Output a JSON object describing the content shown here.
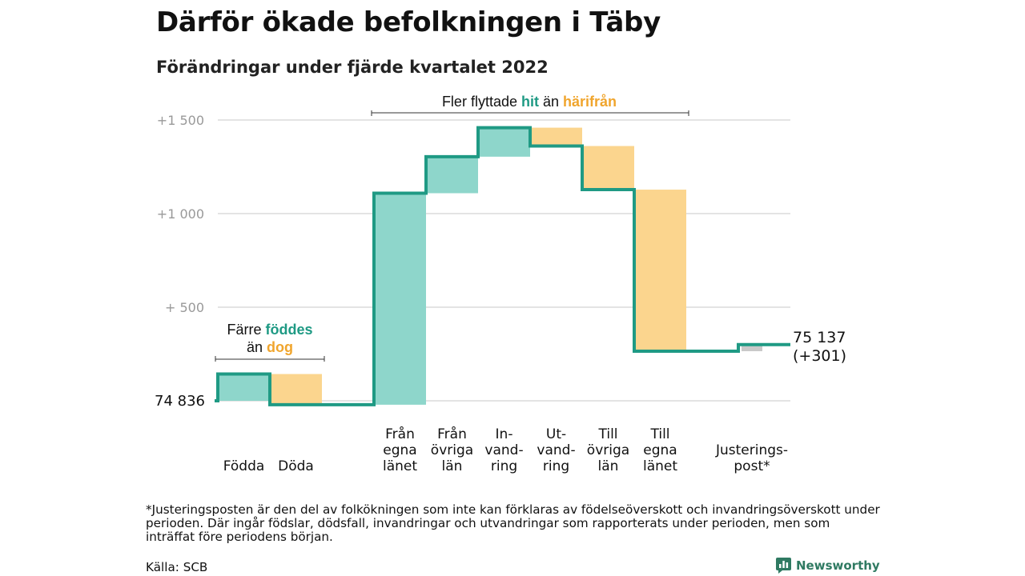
{
  "title": "Därför ökade befolkningen i Täby",
  "subtitle": "Förändringar under fjärde kvartalet 2022",
  "chart_data": {
    "type": "waterfall",
    "start_value": 74836,
    "start_label": "74 836",
    "end_label_line1": "75 137",
    "end_label_line2": "(+301)",
    "y_ticks": [
      {
        "value": 500,
        "label": "+ 500"
      },
      {
        "value": 1000,
        "label": "+1 000"
      },
      {
        "value": 1500,
        "label": "+1 500"
      }
    ],
    "ylim": [
      -30,
      1500
    ],
    "steps": [
      {
        "category": "Födda",
        "label_lines": [
          "Födda"
        ],
        "delta": 143,
        "kind": "in"
      },
      {
        "category": "Döda",
        "label_lines": [
          "Döda"
        ],
        "delta": -164,
        "kind": "out"
      },
      {
        "category": "",
        "label_lines": [],
        "delta": 0,
        "kind": "none"
      },
      {
        "category": "Från egna länet",
        "label_lines": [
          "Från",
          "egna",
          "länet"
        ],
        "delta": 1130,
        "kind": "in"
      },
      {
        "category": "Från övriga län",
        "label_lines": [
          "Från",
          "övriga",
          "län"
        ],
        "delta": 195,
        "kind": "in"
      },
      {
        "category": "Invandring",
        "label_lines": [
          "In-",
          "vand-",
          "ring"
        ],
        "delta": 155,
        "kind": "in"
      },
      {
        "category": "Utvandring",
        "label_lines": [
          "Ut-",
          "vand-",
          "ring"
        ],
        "delta": -98,
        "kind": "out"
      },
      {
        "category": "Till övriga län",
        "label_lines": [
          "Till",
          "övriga",
          "län"
        ],
        "delta": -233,
        "kind": "out"
      },
      {
        "category": "Till egna länet",
        "label_lines": [
          "Till",
          "egna",
          "länet"
        ],
        "delta": -863,
        "kind": "out"
      },
      {
        "category": "",
        "label_lines": [],
        "delta": 0,
        "kind": "none"
      },
      {
        "category": "Justeringspost*",
        "label_lines": [
          "Justerings-",
          "post*"
        ],
        "delta": 35,
        "kind": "adjust"
      }
    ],
    "annotations": {
      "births": {
        "line1_pre": "Färre ",
        "line1_hi": "föddes",
        "line2_pre": "än ",
        "line2_lo": "dog"
      },
      "migration": {
        "pre": "Fler flyttade ",
        "hi": "hit",
        "mid": " än ",
        "lo": "härifrån"
      }
    },
    "colors": {
      "line": "#1f9a84",
      "in_fill": "#8ed6cb",
      "out_fill": "#fbd58e",
      "adjust_fill": "#c9c9c9",
      "grid": "#dcdcdc",
      "tick_text": "#999999",
      "hi_text": "#1f9a84",
      "lo_text": "#f0a52d"
    }
  },
  "footnote": "*Justeringsposten är den del av folkökningen som inte kan förklaras av födelseöverskott och invandringsöverskott under perioden. Där ingår födslar, dödsfall, invandringar och utvandringar som rapporterats under perioden, men som inträffat före periodens början.",
  "source": "Källa: SCB",
  "logo_text": "Newsworthy"
}
